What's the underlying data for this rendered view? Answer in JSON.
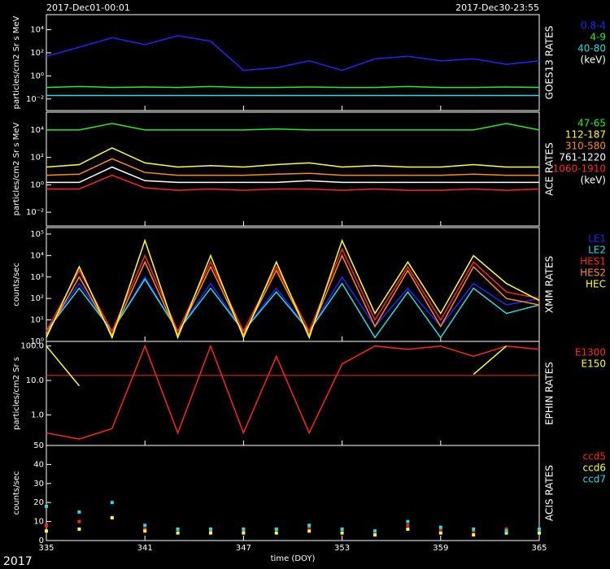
{
  "header": {
    "start": "2017-Dec01-00:01",
    "end": "2017-Dec30-23:55",
    "year": "2017"
  },
  "chart_data": [
    {
      "type": "line",
      "title": "GOES13 RATES",
      "ylabel": "particles/cm2 Sr s MeV",
      "log": true,
      "unit": "(keV)",
      "x": [
        335,
        337,
        339,
        341,
        343,
        345,
        347,
        349,
        351,
        353,
        355,
        357,
        359,
        361,
        363,
        365
      ],
      "xlim": [
        335,
        365
      ],
      "xticks": [
        335,
        341,
        347,
        353,
        359,
        365
      ],
      "ylim": [
        0.001,
        200000
      ],
      "yticks": [
        {
          "value": 0.01,
          "label": "10⁻²"
        },
        {
          "value": 1,
          "label": "10⁰"
        },
        {
          "value": 100,
          "label": "10²"
        },
        {
          "value": 10000,
          "label": "10⁴"
        }
      ],
      "series": [
        {
          "name": "0.8-4",
          "color": "#2222ff",
          "values": [
            50,
            300,
            2000,
            500,
            3000,
            1000,
            3,
            5,
            20,
            3,
            30,
            50,
            20,
            30,
            10,
            20
          ]
        },
        {
          "name": "4-9",
          "color": "#22ee22",
          "values": [
            0.1,
            0.12,
            0.1,
            0.11,
            0.1,
            0.12,
            0.1,
            0.1,
            0.11,
            0.1,
            0.1,
            0.12,
            0.1,
            0.1,
            0.11,
            0.1
          ]
        },
        {
          "name": "40-80",
          "color": "#22dddd",
          "values": [
            0.02,
            0.02,
            0.02,
            0.02,
            0.02,
            0.02,
            0.02,
            0.02,
            0.02,
            0.02,
            0.02,
            0.02,
            0.02,
            0.02,
            0.02,
            0.02
          ]
        }
      ]
    },
    {
      "type": "line",
      "title": "ACE RATES",
      "ylabel": "particles/cm2 Sr s MeV",
      "log": true,
      "unit": "(keV)",
      "x": [
        335,
        337,
        339,
        341,
        343,
        345,
        347,
        349,
        351,
        353,
        355,
        357,
        359,
        361,
        363,
        365
      ],
      "xlim": [
        335,
        365
      ],
      "xticks": [
        335,
        341,
        347,
        353,
        359,
        365
      ],
      "ylim": [
        0.001,
        200000
      ],
      "yticks": [
        {
          "value": 0.01,
          "label": "10⁻²"
        },
        {
          "value": 1,
          "label": "10⁰"
        },
        {
          "value": 100,
          "label": "10²"
        },
        {
          "value": 10000,
          "label": "10⁴"
        }
      ],
      "series": [
        {
          "name": "47-65",
          "color": "#22ee22",
          "values": [
            10000,
            10000,
            30000,
            10000,
            10000,
            10000,
            10000,
            12000,
            10000,
            10000,
            10000,
            10000,
            10000,
            10000,
            30000,
            10000
          ]
        },
        {
          "name": "112-187",
          "color": "#ffff33",
          "values": [
            20,
            30,
            500,
            40,
            20,
            25,
            20,
            30,
            40,
            20,
            25,
            20,
            20,
            30,
            20,
            20
          ]
        },
        {
          "name": "310-580",
          "color": "#ff8822",
          "values": [
            5,
            6,
            80,
            8,
            5,
            5,
            5,
            6,
            7,
            5,
            5,
            5,
            5,
            6,
            5,
            5
          ]
        },
        {
          "name": "761-1220",
          "color": "#ffffff",
          "values": [
            1.5,
            1.5,
            20,
            2,
            1.5,
            1.5,
            1.5,
            1.5,
            2,
            1.5,
            1.5,
            1.5,
            1.5,
            1.5,
            1.5,
            1.5
          ]
        },
        {
          "name": "1060-1910",
          "color": "#ff2222",
          "values": [
            0.5,
            0.5,
            5,
            0.6,
            0.4,
            0.5,
            0.4,
            0.5,
            0.5,
            0.4,
            0.5,
            0.4,
            0.4,
            0.5,
            0.4,
            0.5
          ]
        }
      ]
    },
    {
      "type": "line",
      "title": "XMM RATES",
      "ylabel": "counts/sec",
      "log": true,
      "x": [
        335,
        337,
        339,
        341,
        343,
        345,
        347,
        349,
        351,
        353,
        355,
        357,
        359,
        361,
        363,
        365
      ],
      "xlim": [
        335,
        365
      ],
      "xticks": [
        335,
        341,
        347,
        353,
        359,
        365
      ],
      "ylim": [
        1,
        200000
      ],
      "yticks": [
        {
          "value": 1,
          "label": "10⁰"
        },
        {
          "value": 10,
          "label": "10¹"
        },
        {
          "value": 100,
          "label": "10²"
        },
        {
          "value": 1000,
          "label": "10³"
        },
        {
          "value": 10000,
          "label": "10⁴"
        },
        {
          "value": 100000,
          "label": "10⁵"
        }
      ],
      "series": [
        {
          "name": "LE1",
          "color": "#2222ff",
          "values": [
            3,
            500,
            3,
            1000,
            3,
            500,
            3,
            300,
            3,
            1000,
            5,
            300,
            5,
            500,
            50,
            100
          ]
        },
        {
          "name": "LE2",
          "color": "#22dddd",
          "values": [
            3,
            300,
            3,
            800,
            3,
            300,
            3,
            200,
            3,
            500,
            1.5,
            200,
            1.5,
            300,
            20,
            50
          ]
        },
        {
          "name": "HES1",
          "color": "#ff2222",
          "values": [
            3,
            2000,
            3,
            10000,
            3,
            5000,
            3,
            3000,
            3,
            20000,
            10,
            3000,
            10,
            5000,
            200,
            100
          ]
        },
        {
          "name": "HES2",
          "color": "#ff8822",
          "values": [
            2,
            1000,
            2,
            5000,
            2,
            3000,
            2,
            2000,
            2,
            10000,
            5,
            2000,
            5,
            3000,
            100,
            50
          ]
        },
        {
          "name": "HEC",
          "color": "#ffff33",
          "values": [
            1.5,
            3000,
            1.5,
            50000,
            1.5,
            10000,
            1.5,
            5000,
            1.5,
            50000,
            20,
            5000,
            20,
            10000,
            500,
            80
          ]
        }
      ]
    },
    {
      "type": "line",
      "title": "EPHIN RATES",
      "ylabel": "particles/cm2 Sr s",
      "log": true,
      "x": [
        335,
        337,
        339,
        341,
        343,
        345,
        347,
        349,
        351,
        353,
        355,
        357,
        359,
        361,
        363,
        365
      ],
      "xlim": [
        335,
        365
      ],
      "xticks": [
        335,
        341,
        347,
        353,
        359,
        365
      ],
      "ylim": [
        0.13,
        136
      ],
      "yticks": [
        {
          "value": 1,
          "label": "1.0"
        },
        {
          "value": 10,
          "label": "10.0"
        },
        {
          "value": 100,
          "label": "100.0"
        }
      ],
      "reference_line": 14,
      "series": [
        {
          "name": "E1300",
          "color": "#ff2222",
          "values": [
            0.3,
            0.2,
            0.4,
            100,
            0.3,
            100,
            0.3,
            50,
            0.3,
            30,
            100,
            80,
            100,
            50,
            100,
            80
          ]
        },
        {
          "name": "E150",
          "color": "#ffff33",
          "values": [
            100,
            7,
            null,
            null,
            null,
            null,
            null,
            null,
            null,
            null,
            null,
            null,
            null,
            15,
            100,
            null
          ]
        }
      ]
    },
    {
      "type": "scatter",
      "title": "ACIS RATES",
      "ylabel": "counts/sec",
      "log": false,
      "x": [
        335,
        337,
        339,
        341,
        343,
        345,
        347,
        349,
        351,
        353,
        355,
        357,
        359,
        361,
        363,
        365
      ],
      "xlim": [
        335,
        365
      ],
      "xticks": [
        335,
        341,
        347,
        353,
        359,
        365
      ],
      "xlabel": "time (DOY)",
      "ylim": [
        0,
        50
      ],
      "yticks": [
        0,
        10,
        20,
        30,
        40,
        50
      ],
      "series": [
        {
          "name": "ccd5",
          "color": "#ff2222",
          "values": [
            8,
            10,
            12,
            6,
            6,
            5,
            5,
            6,
            7,
            6,
            5,
            8,
            6,
            5,
            6,
            6
          ]
        },
        {
          "name": "ccd6",
          "color": "#ffff33",
          "values": [
            5,
            6,
            12,
            5,
            4,
            4,
            4,
            4,
            5,
            4,
            3,
            6,
            4,
            3,
            4,
            4
          ]
        },
        {
          "name": "ccd7",
          "color": "#22dddd",
          "values": [
            18,
            15,
            20,
            8,
            6,
            6,
            6,
            6,
            8,
            6,
            5,
            10,
            7,
            6,
            5,
            6
          ]
        }
      ]
    }
  ]
}
